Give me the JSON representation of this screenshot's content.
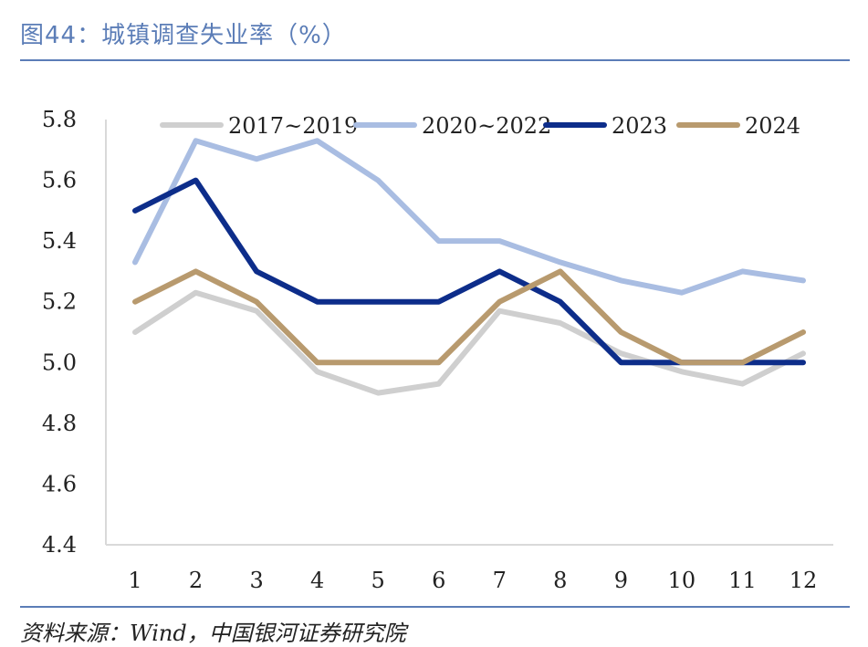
{
  "header": {
    "title": "图44：城镇调查失业率（%）"
  },
  "footer": {
    "source": "资料来源：Wind，中国银河证券研究院"
  },
  "chart_data": {
    "type": "line",
    "title": "图44：城镇调查失业率（%）",
    "xlabel": "",
    "ylabel": "",
    "x": [
      "1",
      "2",
      "3",
      "4",
      "5",
      "6",
      "7",
      "8",
      "9",
      "10",
      "11",
      "12"
    ],
    "ylim": [
      4.4,
      5.8
    ],
    "yticks": [
      "4.4",
      "4.6",
      "4.8",
      "5.0",
      "5.2",
      "5.4",
      "5.6",
      "5.8"
    ],
    "grid": false,
    "legend": "top",
    "series": [
      {
        "name": "2017~2019",
        "color": "#cfcfcf",
        "values": [
          5.1,
          5.23,
          5.17,
          4.97,
          4.9,
          4.93,
          5.17,
          5.13,
          5.03,
          4.97,
          4.93,
          5.03
        ]
      },
      {
        "name": "2020~2022",
        "color": "#a9bde2",
        "values": [
          5.33,
          5.73,
          5.67,
          5.73,
          5.6,
          5.4,
          5.4,
          5.33,
          5.27,
          5.23,
          5.3,
          5.27
        ]
      },
      {
        "name": "2023",
        "color": "#0d2d8a",
        "values": [
          5.5,
          5.6,
          5.3,
          5.2,
          5.2,
          5.2,
          5.3,
          5.2,
          5.0,
          5.0,
          5.0,
          5.0
        ]
      },
      {
        "name": "2024",
        "color": "#b89a6e",
        "values": [
          5.2,
          5.3,
          5.2,
          5.0,
          5.0,
          5.0,
          5.2,
          5.3,
          5.1,
          5.0,
          5.0,
          5.1
        ]
      }
    ]
  }
}
